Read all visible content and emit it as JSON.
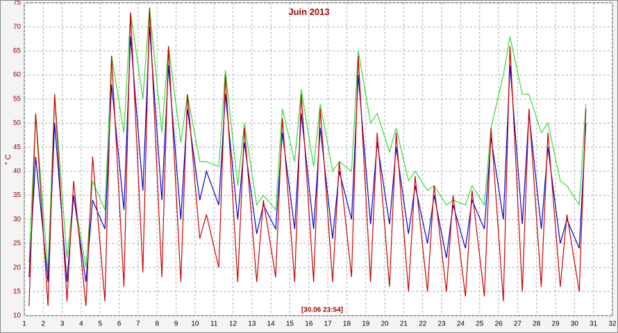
{
  "chart_data": {
    "type": "line",
    "title": "Juin 2013",
    "y_label": "° C",
    "annotation": "[30.06 23:54]",
    "x": [
      1.25,
      1.6,
      2.25,
      2.6,
      3.25,
      3.6,
      4.25,
      4.6,
      5.25,
      5.6,
      6.25,
      6.6,
      7.25,
      7.6,
      8.25,
      8.6,
      9.25,
      9.6,
      10.25,
      10.6,
      11.25,
      11.6,
      12.25,
      12.6,
      13.25,
      13.6,
      14.25,
      14.6,
      15.25,
      15.6,
      16.25,
      16.6,
      17.25,
      17.6,
      18.25,
      18.6,
      19.25,
      19.6,
      20.25,
      20.6,
      21.25,
      21.6,
      22.25,
      22.6,
      23.25,
      23.6,
      24.25,
      24.6,
      25.25,
      25.6,
      26.25,
      26.6,
      27.25,
      27.6,
      28.25,
      28.6,
      29.25,
      29.6,
      30.25,
      30.6
    ],
    "series": [
      {
        "name": "green",
        "color": "#33dd33",
        "values": [
          21,
          52,
          19,
          56,
          22,
          35,
          20,
          38,
          32,
          64,
          48,
          73,
          55,
          74,
          48,
          66,
          46,
          56,
          42,
          42,
          41,
          61,
          37,
          50,
          33,
          35,
          32,
          53,
          42,
          57,
          41,
          54,
          40,
          42,
          40,
          65,
          50,
          52,
          44,
          49,
          38,
          40,
          36,
          37,
          33,
          34,
          33,
          37,
          33,
          49,
          60,
          68,
          56,
          56,
          48,
          50,
          38,
          37,
          33,
          54
        ]
      },
      {
        "name": "blue",
        "color": "#0000cc",
        "values": [
          18,
          43,
          17,
          50,
          17,
          35,
          17,
          34,
          28,
          58,
          32,
          68,
          36,
          70,
          34,
          62,
          30,
          53,
          34,
          40,
          33,
          56,
          30,
          46,
          27,
          33,
          28,
          48,
          28,
          52,
          28,
          49,
          26,
          40,
          30,
          60,
          29,
          46,
          29,
          45,
          27,
          37,
          25,
          35,
          22,
          33,
          24,
          34,
          28,
          47,
          30,
          62,
          29,
          52,
          28,
          45,
          25,
          30,
          24,
          50
        ]
      },
      {
        "name": "red",
        "color": "#cc0000",
        "values": [
          12,
          52,
          12,
          56,
          13,
          38,
          12,
          43,
          13,
          64,
          16,
          73,
          19,
          74,
          18,
          66,
          17,
          56,
          26,
          31,
          20,
          60,
          17,
          49,
          17,
          34,
          18,
          51,
          17,
          56,
          17,
          53,
          17,
          42,
          18,
          64,
          17,
          48,
          16,
          48,
          15,
          39,
          15,
          37,
          15,
          35,
          14,
          36,
          14,
          49,
          13,
          66,
          15,
          53,
          16,
          48,
          16,
          31,
          15,
          53
        ]
      }
    ],
    "xlim": [
      1,
      32
    ],
    "xticks": [
      1,
      2,
      3,
      4,
      5,
      6,
      7,
      8,
      9,
      10,
      11,
      12,
      13,
      14,
      15,
      16,
      17,
      18,
      19,
      20,
      21,
      22,
      23,
      24,
      25,
      26,
      27,
      28,
      29,
      30,
      31,
      32
    ],
    "ylim": [
      10,
      75
    ],
    "yticks": [
      10,
      15,
      20,
      25,
      30,
      35,
      40,
      45,
      50,
      55,
      60,
      65,
      70,
      75
    ],
    "grid": true
  }
}
